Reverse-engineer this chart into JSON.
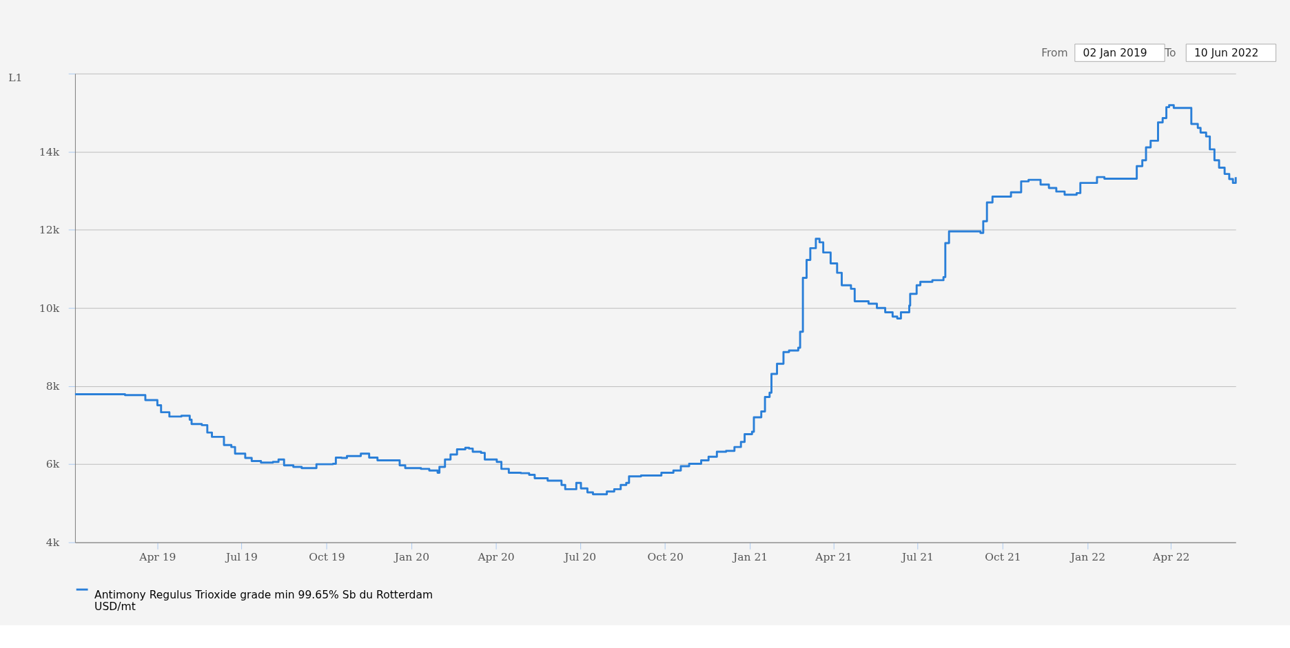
{
  "chart_data": {
    "type": "step",
    "ylabel": "L1",
    "annotations": [
      "From",
      "02 Jan 2019",
      "To",
      "10 Jun 2022"
    ],
    "x": [
      "2019-01-02",
      "2019-02-25",
      "2019-03-19",
      "2019-04-01",
      "2019-04-05",
      "2019-04-14",
      "2019-04-27",
      "2019-05-06",
      "2019-05-08",
      "2019-05-19",
      "2019-05-25",
      "2019-05-30",
      "2019-06-09",
      "2019-06-12",
      "2019-06-20",
      "2019-06-24",
      "2019-07-05",
      "2019-07-12",
      "2019-07-22",
      "2019-08-04",
      "2019-08-10",
      "2019-08-16",
      "2019-08-26",
      "2019-09-04",
      "2019-09-18",
      "2019-09-20",
      "2019-10-08",
      "2019-10-11",
      "2019-10-17",
      "2019-10-23",
      "2019-11-07",
      "2019-11-14",
      "2019-11-16",
      "2019-11-25",
      "2019-12-14",
      "2019-12-19",
      "2019-12-25",
      "2020-01-11",
      "2020-01-20",
      "2020-01-29",
      "2020-01-31",
      "2020-02-06",
      "2020-02-12",
      "2020-02-19",
      "2020-02-28",
      "2020-03-03",
      "2020-03-07",
      "2020-03-16",
      "2020-03-20",
      "2020-04-02",
      "2020-04-07",
      "2020-04-15",
      "2020-04-28",
      "2020-05-07",
      "2020-05-13",
      "2020-05-27",
      "2020-06-11",
      "2020-06-15",
      "2020-06-25",
      "2020-06-27",
      "2020-07-02",
      "2020-07-09",
      "2020-07-15",
      "2020-07-26",
      "2020-07-30",
      "2020-08-07",
      "2020-08-14",
      "2020-08-20",
      "2020-08-23",
      "2020-09-05",
      "2020-09-27",
      "2020-10-10",
      "2020-10-18",
      "2020-10-27",
      "2020-11-09",
      "2020-11-17",
      "2020-11-26",
      "2020-12-06",
      "2020-12-15",
      "2020-12-22",
      "2020-12-26",
      "2021-01-03",
      "2021-01-05",
      "2021-01-13",
      "2021-01-17",
      "2021-01-22",
      "2021-01-24",
      "2021-01-30",
      "2021-02-06",
      "2021-02-12",
      "2021-02-22",
      "2021-02-24",
      "2021-02-27",
      "2021-03-03",
      "2021-03-07",
      "2021-03-13",
      "2021-03-17",
      "2021-03-21",
      "2021-03-29",
      "2021-04-05",
      "2021-04-10",
      "2021-04-20",
      "2021-04-24",
      "2021-05-09",
      "2021-05-18",
      "2021-05-27",
      "2021-06-04",
      "2021-06-09",
      "2021-06-13",
      "2021-06-22",
      "2021-06-23",
      "2021-06-30",
      "2021-07-04",
      "2021-07-17",
      "2021-07-29",
      "2021-07-31",
      "2021-08-04",
      "2021-08-28",
      "2021-09-07",
      "2021-09-10",
      "2021-09-14",
      "2021-09-20",
      "2021-10-08",
      "2021-10-10",
      "2021-10-18",
      "2021-10-21",
      "2021-10-29",
      "2021-11-07",
      "2021-11-11",
      "2021-11-20",
      "2021-11-28",
      "2021-12-07",
      "2021-12-17",
      "2021-12-20",
      "2021-12-24",
      "2022-01-08",
      "2022-01-11",
      "2022-01-19",
      "2022-02-19",
      "2022-02-23",
      "2022-03-01",
      "2022-03-05",
      "2022-03-10",
      "2022-03-16",
      "2022-03-18",
      "2022-03-23",
      "2022-03-27",
      "2022-03-30",
      "2022-04-04",
      "2022-04-20",
      "2022-04-23",
      "2022-04-30",
      "2022-05-03",
      "2022-05-09",
      "2022-05-13",
      "2022-05-18",
      "2022-05-23",
      "2022-05-29",
      "2022-06-03",
      "2022-06-07",
      "2022-06-10"
    ],
    "series": [
      {
        "name": "Antimony Regulus Trioxide grade min 99.65% Sb du Rotterdam\nUSD/mt",
        "color": "#2a7fd8",
        "values": [
          7790,
          7770,
          7640,
          7510,
          7330,
          7220,
          7240,
          7140,
          7030,
          7000,
          6810,
          6700,
          6700,
          6490,
          6440,
          6270,
          6160,
          6080,
          6040,
          6060,
          6120,
          5970,
          5930,
          5900,
          5900,
          6000,
          6010,
          6170,
          6160,
          6210,
          6270,
          6270,
          6170,
          6100,
          6100,
          5970,
          5900,
          5880,
          5840,
          5780,
          5930,
          6120,
          6250,
          6380,
          6420,
          6400,
          6320,
          6290,
          6120,
          6060,
          5880,
          5780,
          5770,
          5730,
          5640,
          5580,
          5470,
          5360,
          5360,
          5520,
          5380,
          5280,
          5230,
          5230,
          5300,
          5360,
          5470,
          5520,
          5690,
          5710,
          5780,
          5840,
          5950,
          6010,
          6100,
          6190,
          6320,
          6340,
          6440,
          6570,
          6770,
          6830,
          7200,
          7350,
          7720,
          7830,
          8310,
          8570,
          8870,
          8910,
          8980,
          9390,
          10770,
          11230,
          11530,
          11770,
          11680,
          11420,
          11140,
          10900,
          10580,
          10490,
          10170,
          10110,
          10000,
          9890,
          9780,
          9730,
          9890,
          10060,
          10360,
          10580,
          10670,
          10710,
          10790,
          11660,
          11960,
          11960,
          11920,
          12220,
          12700,
          12850,
          12850,
          12960,
          12960,
          13240,
          13280,
          13280,
          13160,
          13070,
          12980,
          12900,
          12900,
          12940,
          13200,
          13200,
          13350,
          13310,
          13310,
          13630,
          13780,
          14110,
          14280,
          14280,
          14750,
          14860,
          15140,
          15190,
          15120,
          15120,
          14710,
          14610,
          14490,
          14390,
          14060,
          13780,
          13590,
          13430,
          13300,
          13200,
          13350
        ]
      }
    ],
    "xlim": [
      "2019-01-02",
      "2022-06-10"
    ],
    "xticks": [
      {
        "value": "2019-04-01",
        "label": "Apr 19"
      },
      {
        "value": "2019-07-01",
        "label": "Jul 19"
      },
      {
        "value": "2019-10-01",
        "label": "Oct 19"
      },
      {
        "value": "2020-01-01",
        "label": "Jan 20"
      },
      {
        "value": "2020-04-01",
        "label": "Apr 20"
      },
      {
        "value": "2020-07-01",
        "label": "Jul 20"
      },
      {
        "value": "2020-10-01",
        "label": "Oct 20"
      },
      {
        "value": "2021-01-01",
        "label": "Jan 21"
      },
      {
        "value": "2021-04-01",
        "label": "Apr 21"
      },
      {
        "value": "2021-07-01",
        "label": "Jul 21"
      },
      {
        "value": "2021-10-01",
        "label": "Oct 21"
      },
      {
        "value": "2022-01-01",
        "label": "Jan 22"
      },
      {
        "value": "2022-04-01",
        "label": "Apr 22"
      }
    ],
    "ylim": [
      4000,
      16000
    ],
    "yticks": [
      {
        "value": 4000,
        "label": "4k"
      },
      {
        "value": 6000,
        "label": "6k"
      },
      {
        "value": 8000,
        "label": "8k"
      },
      {
        "value": 10000,
        "label": "10k"
      },
      {
        "value": 12000,
        "label": "12k"
      },
      {
        "value": 14000,
        "label": "14k"
      },
      {
        "value": 16000,
        "label": null
      }
    ],
    "grid": "y",
    "legend": "bottom"
  }
}
